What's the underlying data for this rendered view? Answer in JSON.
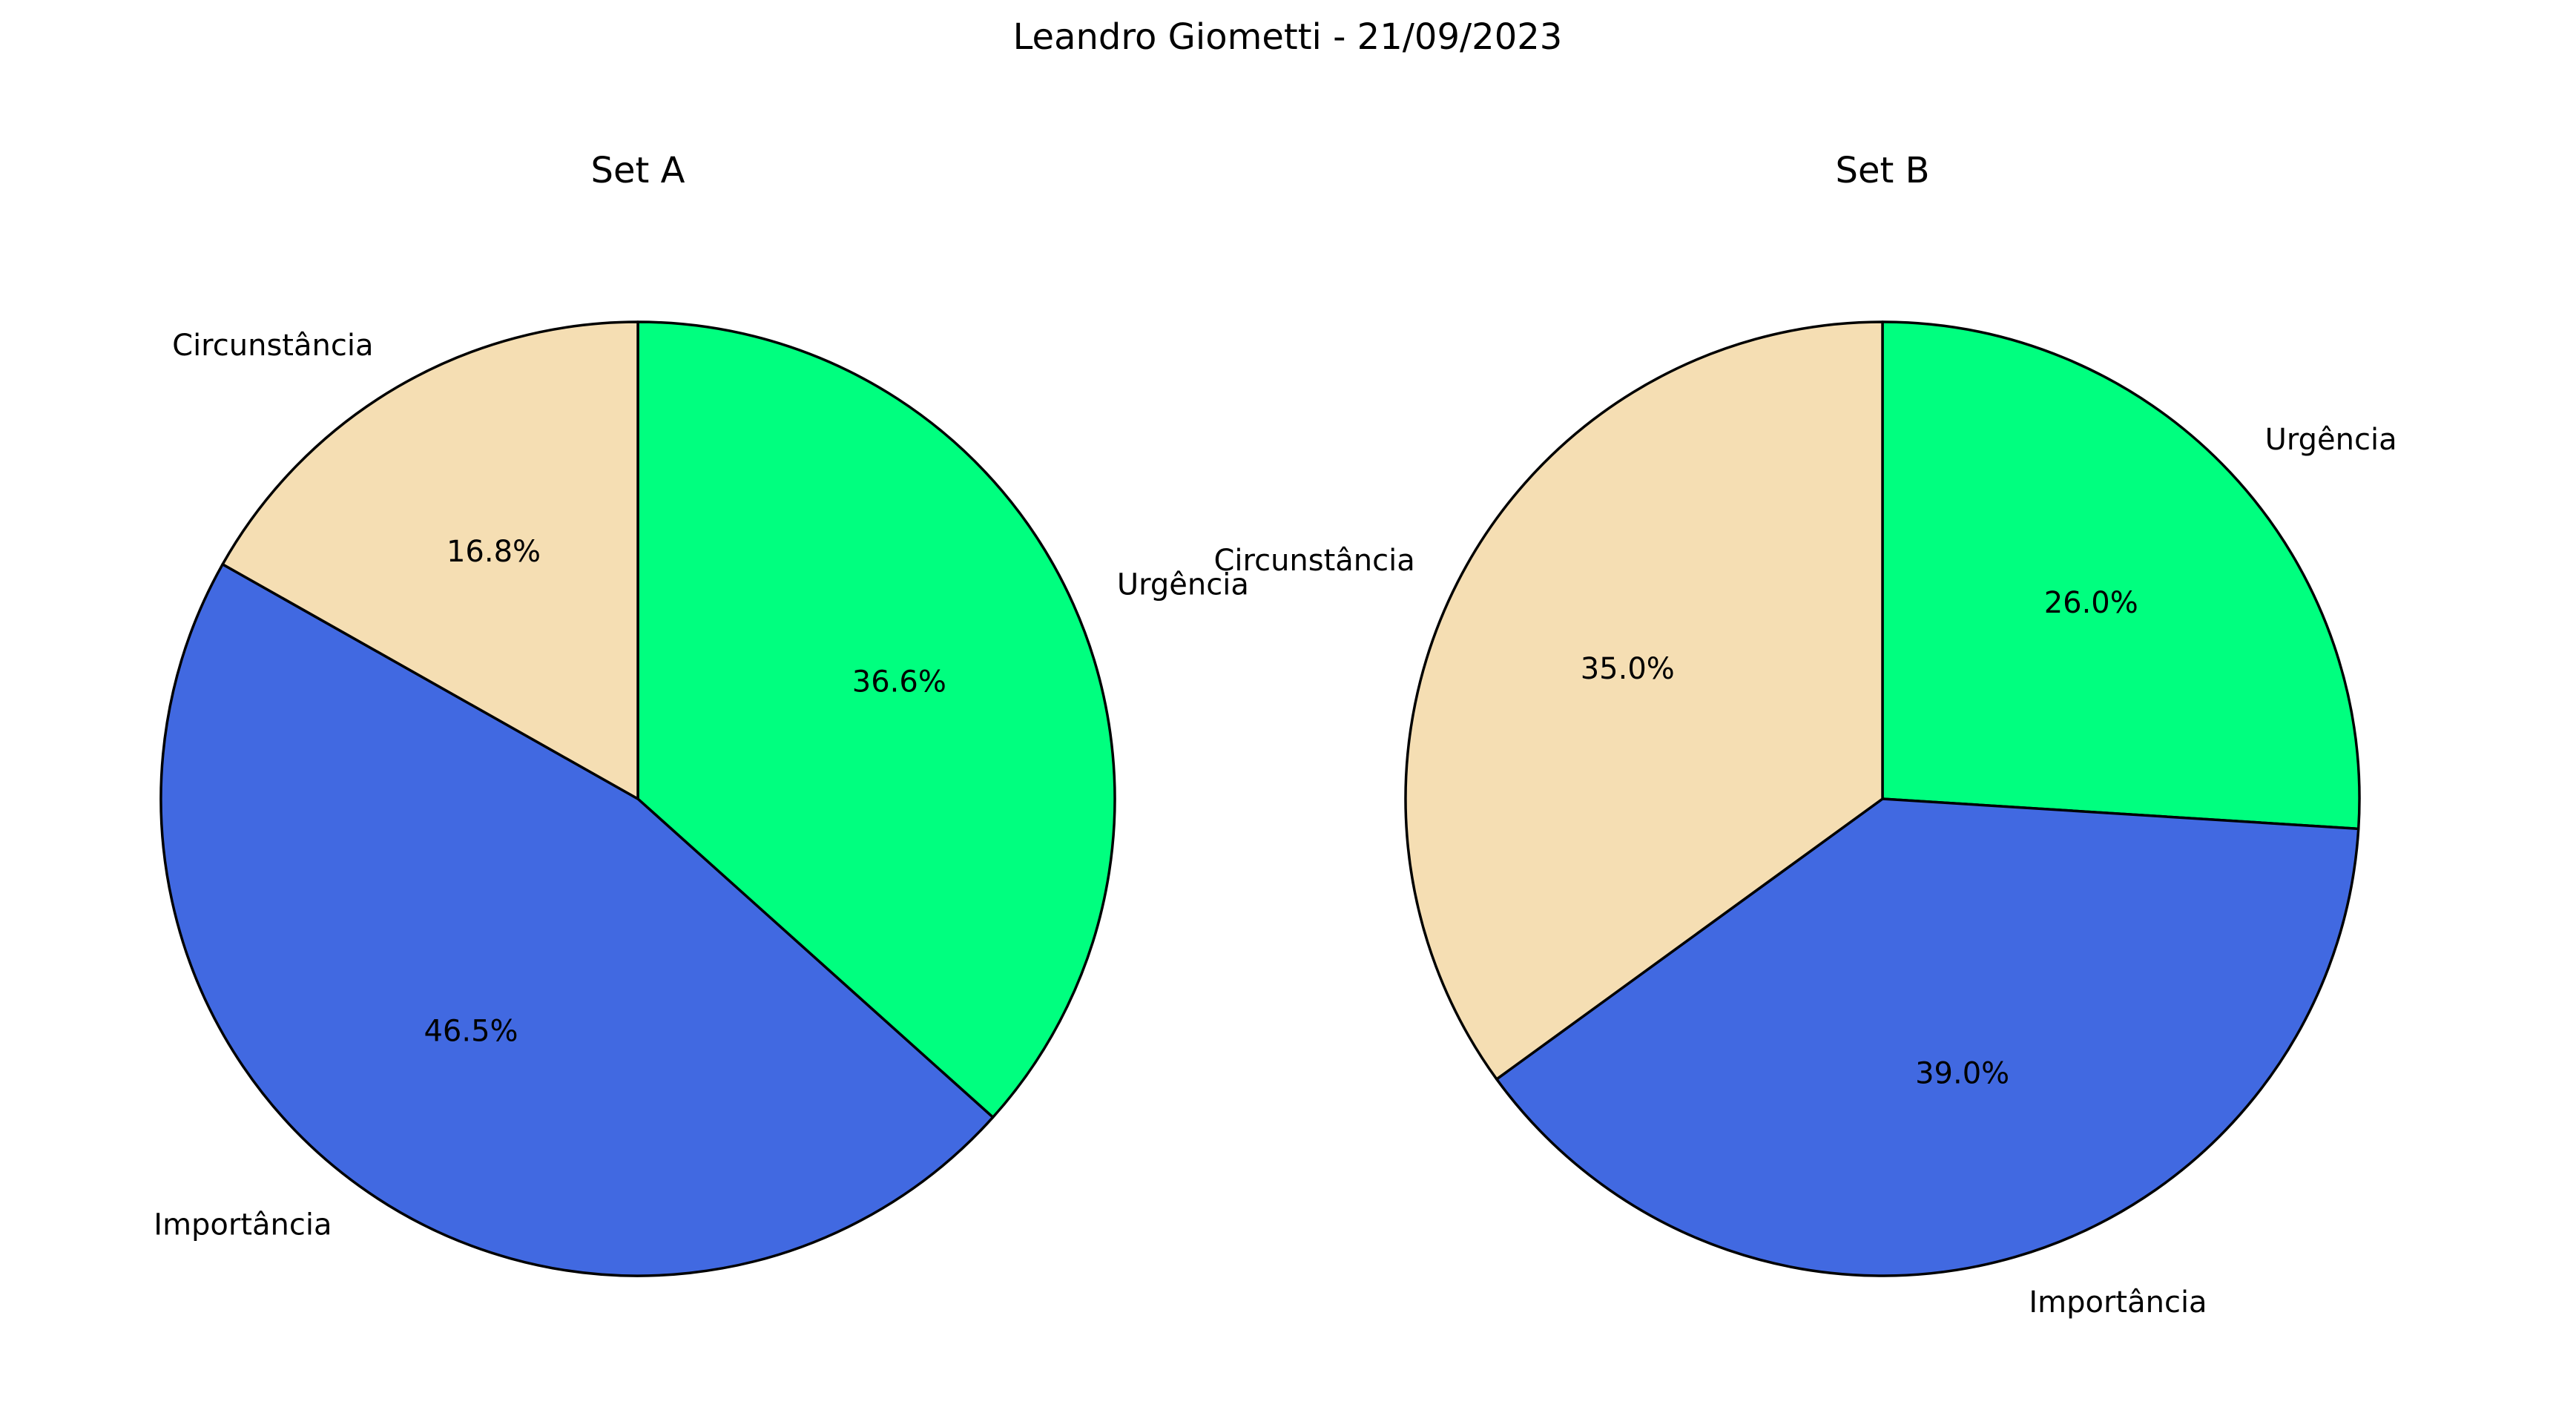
{
  "figure": {
    "title": "Leandro Giometti - 21/09/2023"
  },
  "chart_data": [
    {
      "type": "pie",
      "title": "Set A",
      "start_angle_deg": 90,
      "direction": "clockwise",
      "slices": [
        {
          "label": "Urgência",
          "value": 36.6,
          "pct_text": "36.6%",
          "color": "#00FF7F"
        },
        {
          "label": "Importância",
          "value": 46.5,
          "pct_text": "46.5%",
          "color": "#4169E1"
        },
        {
          "label": "Circunstância",
          "value": 16.8,
          "pct_text": "16.8%",
          "color": "#F5DEB3"
        }
      ]
    },
    {
      "type": "pie",
      "title": "Set B",
      "start_angle_deg": 90,
      "direction": "clockwise",
      "slices": [
        {
          "label": "Urgência",
          "value": 26.0,
          "pct_text": "26.0%",
          "color": "#00FF7F"
        },
        {
          "label": "Importância",
          "value": 39.0,
          "pct_text": "39.0%",
          "color": "#4169E1"
        },
        {
          "label": "Circunstância",
          "value": 35.0,
          "pct_text": "35.0%",
          "color": "#F5DEB3"
        }
      ]
    }
  ]
}
